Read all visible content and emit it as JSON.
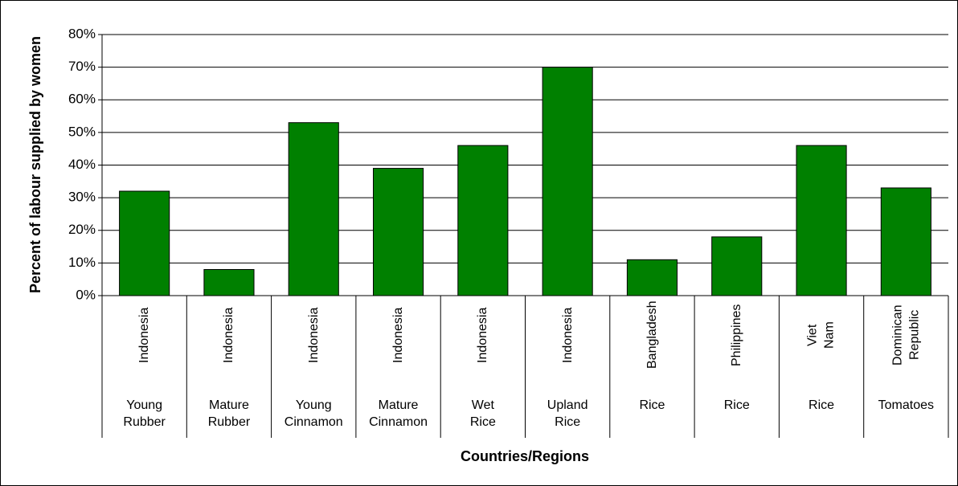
{
  "chart_data": {
    "type": "bar",
    "y_label": "Percent of labour supplied by women",
    "x_label": "Countries/Regions",
    "categories": [
      "Indonesia",
      "Indonesia",
      "Indonesia",
      "Indonesia",
      "Indonesia",
      "Indonesia",
      "Bangladesh",
      "Philippines",
      "Viet Nam",
      "Dominican Republic"
    ],
    "groups": [
      "Young Rubber",
      "Mature Rubber",
      "Young Cinnamon",
      "Mature Cinnamon",
      "Wet Rice",
      "Upland Rice",
      "Rice",
      "Rice",
      "Rice",
      "Tomatoes"
    ],
    "values": [
      32,
      8,
      53,
      39,
      46,
      70,
      11,
      18,
      46,
      33
    ],
    "color": "#008000",
    "ylim": [
      0,
      80
    ],
    "yticks": [
      {
        "value": 0,
        "label": "0%"
      },
      {
        "value": 10,
        "label": "10%"
      },
      {
        "value": 20,
        "label": "20%"
      },
      {
        "value": 30,
        "label": "30%"
      },
      {
        "value": 40,
        "label": "40%"
      },
      {
        "value": 50,
        "label": "50%"
      },
      {
        "value": 60,
        "label": "60%"
      },
      {
        "value": 70,
        "label": "70%"
      },
      {
        "value": 80,
        "label": "80%"
      }
    ],
    "grid": true
  }
}
